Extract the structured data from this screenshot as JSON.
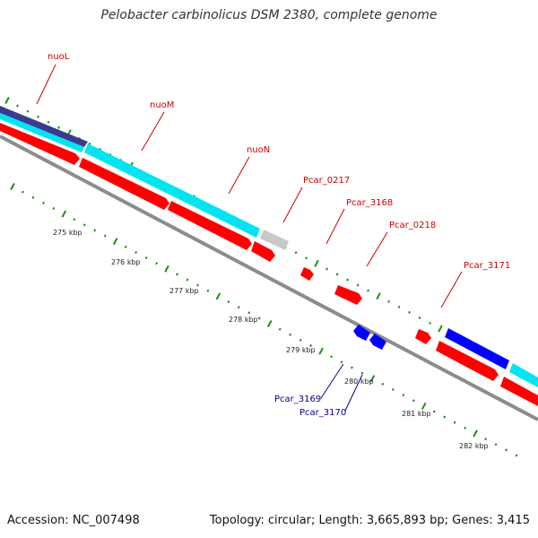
{
  "title": "Pelobacter carbinolicus DSM 2380, complete genome",
  "footer": {
    "accession": "Accession: NC_007498",
    "topology": "Topology: circular; Length: 3,665,893 bp; Genes: 3,415"
  },
  "colors": {
    "backbone": "#8c8c8c",
    "cds_red": "#ff0000",
    "cds_blue": "#0000ff",
    "cog_cyan": "#00e5f0",
    "cog_navy": "#3a3a8f",
    "gray_feature": "#c8c8c8",
    "tick_green": "#1a8f1a",
    "label_red": "#cc0000",
    "label_blue": "#000099"
  },
  "scale_labels": [
    "275 kbp",
    "276 kbp",
    "277 kbp",
    "278 kbp",
    "279 kbp",
    "280 kbp",
    "281 kbp",
    "282 kbp"
  ],
  "gene_labels": [
    {
      "text": "nuoL",
      "color": "red"
    },
    {
      "text": "nuoM",
      "color": "red"
    },
    {
      "text": "nuoN",
      "color": "red"
    },
    {
      "text": "Pcar_0217",
      "color": "red"
    },
    {
      "text": "Pcar_3168",
      "color": "red"
    },
    {
      "text": "Pcar_0218",
      "color": "red"
    },
    {
      "text": "Pcar_3171",
      "color": "red"
    },
    {
      "text": "Pcar_3169",
      "color": "blue"
    },
    {
      "text": "Pcar_3170",
      "color": "blue"
    }
  ]
}
